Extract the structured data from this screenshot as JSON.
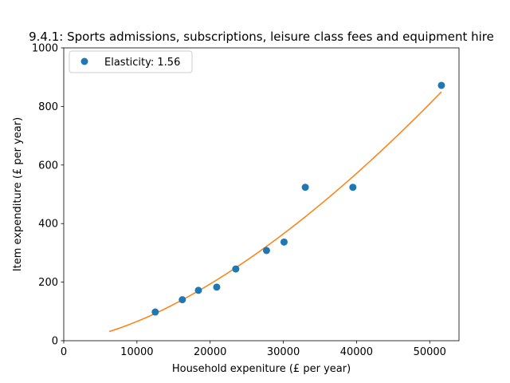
{
  "chart_data": {
    "type": "scatter",
    "title": "9.4.1: Sports admissions, subscriptions, leisure class fees and equipment hire",
    "xlabel": "Household expeniture (£ per year)",
    "ylabel": "Item expenditure (£ per year)",
    "xlim": [
      0,
      54000
    ],
    "ylim": [
      0,
      1000
    ],
    "x_ticks": [
      0,
      10000,
      20000,
      30000,
      40000,
      50000
    ],
    "y_ticks": [
      0,
      200,
      400,
      600,
      800,
      1000
    ],
    "grid": false,
    "legend_position": "top-left",
    "series": [
      {
        "name": "Elasticity: 1.56",
        "kind": "scatter",
        "color": "#1f77b4",
        "points": [
          {
            "x": 12500,
            "y": 98
          },
          {
            "x": 16200,
            "y": 140
          },
          {
            "x": 18400,
            "y": 172
          },
          {
            "x": 20900,
            "y": 183
          },
          {
            "x": 23500,
            "y": 245
          },
          {
            "x": 27700,
            "y": 308
          },
          {
            "x": 30100,
            "y": 337
          },
          {
            "x": 33000,
            "y": 524
          },
          {
            "x": 39500,
            "y": 524
          },
          {
            "x": 51600,
            "y": 872
          }
        ]
      },
      {
        "kind": "fit-line",
        "color": "#ff7f0e",
        "model": "power",
        "elasticity": 1.56,
        "x_range": [
          6200,
          51600
        ],
        "anchor": {
          "x": 51600,
          "y": 850
        }
      }
    ]
  }
}
